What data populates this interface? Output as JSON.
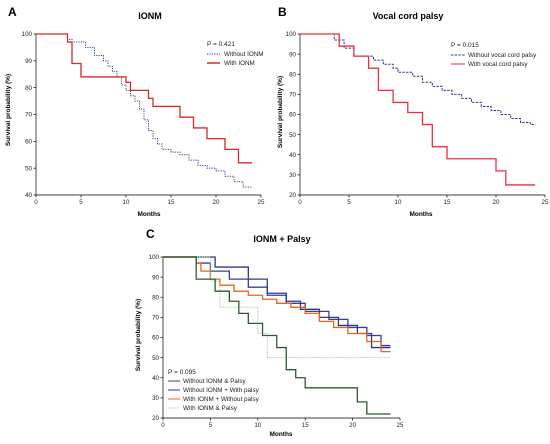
{
  "chart_data": [
    {
      "panel": "A",
      "title": "IONM",
      "type": "line",
      "xlabel": "Months",
      "ylabel": "Survival probability (%)",
      "xlim": [
        0,
        25
      ],
      "ylim": [
        40,
        100
      ],
      "xticks": [
        0,
        5,
        10,
        15,
        20,
        25
      ],
      "yticks": [
        40,
        50,
        60,
        70,
        80,
        90,
        100
      ],
      "p_value": "P = 0.421",
      "legend_position": "top-right",
      "series": [
        {
          "name": "Without IONM",
          "color": "#3a3f9a",
          "style": "dotted",
          "x": [
            0,
            3.5,
            3.5,
            4.0,
            4.0,
            5.5,
            5.5,
            6.5,
            6.5,
            7.5,
            7.5,
            8.0,
            8.0,
            8.5,
            8.5,
            9.0,
            9.0,
            9.5,
            9.5,
            10.0,
            10.0,
            10.5,
            10.5,
            11.0,
            11.0,
            11.5,
            11.5,
            12.0,
            12.0,
            12.5,
            12.5,
            13.0,
            13.0,
            13.5,
            13.5,
            14.0,
            14.0,
            15.0,
            15.0,
            16.0,
            16.0,
            17.0,
            17.0,
            18.0,
            18.0,
            19.0,
            19.0,
            20.0,
            20.0,
            21.0,
            21.0,
            22.0,
            22.0,
            23.0,
            23.0,
            24.0
          ],
          "y": [
            100,
            100,
            98,
            98,
            97,
            97,
            95,
            95,
            92,
            92,
            90,
            90,
            88,
            88,
            86,
            86,
            84,
            84,
            81,
            81,
            79,
            79,
            77,
            77,
            75,
            75,
            72,
            72,
            68,
            68,
            64,
            64,
            61,
            61,
            59,
            59,
            57,
            57,
            56,
            56,
            55,
            55,
            53,
            53,
            51,
            51,
            50,
            50,
            49,
            49,
            47,
            47,
            45,
            45,
            43,
            43
          ]
        },
        {
          "name": "With IONM",
          "color": "#d62828",
          "style": "solid",
          "x": [
            0,
            3.5,
            3.5,
            4.0,
            4.0,
            5.0,
            5.0,
            10.0,
            10.0,
            10.5,
            10.5,
            12.5,
            12.5,
            13.0,
            13.0,
            16.0,
            16.0,
            17.5,
            17.5,
            19.0,
            19.0,
            21.0,
            21.0,
            22.5,
            22.5,
            23.5,
            23.5,
            24.0
          ],
          "y": [
            100,
            100,
            97,
            97,
            89,
            89,
            84,
            84,
            82,
            82,
            79,
            79,
            76,
            76,
            73,
            73,
            69,
            69,
            65,
            65,
            61,
            61,
            57,
            57,
            52,
            52,
            52,
            52
          ]
        }
      ]
    },
    {
      "panel": "B",
      "title": "Vocal cord palsy",
      "type": "line",
      "xlabel": "Months",
      "ylabel": "Survival probability (%)",
      "xlim": [
        0,
        25
      ],
      "ylim": [
        20,
        100
      ],
      "xticks": [
        0,
        5,
        10,
        15,
        20,
        25
      ],
      "yticks": [
        20,
        30,
        40,
        50,
        60,
        70,
        80,
        90,
        100
      ],
      "p_value": "P = 0.015",
      "legend_position": "top-right",
      "series": [
        {
          "name": "Without vocal cord palsy",
          "color": "#2e3192",
          "style": "dashed",
          "x": [
            0,
            3.5,
            3.5,
            4.5,
            4.5,
            5.5,
            5.5,
            7.5,
            7.5,
            8.5,
            8.5,
            9.5,
            9.5,
            10.0,
            10.0,
            11.5,
            11.5,
            12.5,
            12.5,
            13.5,
            13.5,
            14.5,
            14.5,
            15.5,
            15.5,
            16.5,
            16.5,
            17.5,
            17.5,
            18.5,
            18.5,
            19.5,
            19.5,
            20.5,
            20.5,
            21.5,
            21.5,
            22.5,
            22.5,
            23.5,
            23.5,
            24.0
          ],
          "y": [
            100,
            100,
            97,
            97,
            93,
            93,
            89,
            89,
            87,
            87,
            85,
            85,
            83,
            83,
            81,
            81,
            79,
            79,
            76,
            76,
            74,
            74,
            72,
            72,
            70,
            70,
            68,
            68,
            66,
            66,
            64,
            64,
            62,
            62,
            60,
            60,
            58,
            58,
            56,
            56,
            55,
            55
          ]
        },
        {
          "name": "With vocal cord palsy",
          "color": "#e8313a",
          "style": "solid",
          "x": [
            0,
            4.0,
            4.0,
            5.5,
            5.5,
            7.0,
            7.0,
            8.0,
            8.0,
            9.5,
            9.5,
            11.0,
            11.0,
            12.5,
            12.5,
            13.5,
            13.5,
            15.0,
            15.0,
            20.0,
            20.0,
            21.0,
            21.0,
            24.0
          ],
          "y": [
            100,
            100,
            94,
            94,
            89,
            89,
            83,
            83,
            72,
            72,
            66,
            66,
            61,
            61,
            55,
            55,
            44,
            44,
            38,
            38,
            32,
            32,
            25,
            25
          ]
        }
      ]
    },
    {
      "panel": "C",
      "title": "IONM + Palsy",
      "type": "line",
      "xlabel": "Months",
      "ylabel": "Survival probability (%)",
      "xlim": [
        0,
        25
      ],
      "ylim": [
        20,
        100
      ],
      "xticks": [
        0,
        5,
        10,
        15,
        20,
        25
      ],
      "yticks": [
        20,
        30,
        40,
        50,
        60,
        70,
        80,
        90,
        100
      ],
      "p_value": "P = 0.095",
      "legend_position": "bottom-left",
      "series": [
        {
          "name": "Without IONM & Palsy",
          "color": "#3a3f9a",
          "style": "solid",
          "x": [
            0,
            3.5,
            3.5,
            5.0,
            5.0,
            7.0,
            7.0,
            9.0,
            9.0,
            11.0,
            11.0,
            13.0,
            13.0,
            15.0,
            15.0,
            17.5,
            17.5,
            19.5,
            19.5,
            21.5,
            21.5,
            23.0,
            23.0,
            24.0
          ],
          "y": [
            100,
            100,
            97,
            97,
            93,
            93,
            89,
            89,
            85,
            85,
            81,
            81,
            77,
            77,
            73,
            73,
            69,
            69,
            65,
            65,
            61,
            61,
            56,
            56
          ]
        },
        {
          "name": "Without IONM + With palsy",
          "color": "#2e3a87",
          "style": "solid",
          "x": [
            0,
            5.5,
            5.5,
            9.0,
            9.0,
            11.0,
            11.0,
            13.0,
            13.0,
            14.5,
            14.5,
            16.5,
            16.5,
            18.5,
            18.5,
            20.5,
            20.5,
            22.0,
            22.0,
            24.0
          ],
          "y": [
            100,
            100,
            95,
            95,
            89,
            89,
            82,
            82,
            78,
            78,
            74,
            74,
            70,
            70,
            66,
            66,
            62,
            62,
            55,
            55
          ]
        },
        {
          "name": "With IONM + Without palsy",
          "color": "#e8661a",
          "style": "solid",
          "x": [
            0,
            3.5,
            3.5,
            4.0,
            4.0,
            5.0,
            5.0,
            6.0,
            6.0,
            7.5,
            7.5,
            9.0,
            9.0,
            10.5,
            10.5,
            12.0,
            12.0,
            13.5,
            13.5,
            15.0,
            15.0,
            16.5,
            16.5,
            18.0,
            18.0,
            19.5,
            19.5,
            21.5,
            21.5,
            23.0,
            23.0,
            24.0
          ],
          "y": [
            100,
            100,
            97,
            97,
            93,
            93,
            89,
            89,
            86,
            86,
            83,
            83,
            81,
            81,
            79,
            79,
            77,
            77,
            75,
            75,
            72,
            72,
            68,
            68,
            65,
            65,
            62,
            62,
            58,
            58,
            53,
            53
          ]
        },
        {
          "name": "With IONM & Palsy",
          "color": "#a8c79a",
          "style": "dotted",
          "x": [
            0,
            5.0,
            5.0,
            6.0,
            6.0,
            10.0,
            10.0,
            11.0,
            11.0,
            24.0
          ],
          "y": [
            100,
            100,
            88,
            88,
            75,
            75,
            62,
            62,
            50,
            50
          ]
        },
        {
          "name": "",
          "color": "#2f5a2f",
          "style": "solid",
          "x": [
            0,
            3.5,
            3.5,
            5.5,
            5.5,
            7.0,
            7.0,
            8.0,
            8.0,
            9.0,
            9.0,
            10.5,
            10.5,
            12.0,
            12.0,
            13.0,
            13.0,
            14.0,
            14.0,
            15.0,
            15.0,
            20.5,
            20.5,
            21.5,
            21.5,
            24.0
          ],
          "y": [
            100,
            100,
            89,
            89,
            83,
            83,
            78,
            78,
            72,
            72,
            67,
            67,
            61,
            61,
            55,
            55,
            44,
            44,
            40,
            40,
            35,
            35,
            28,
            28,
            22,
            22
          ]
        }
      ]
    }
  ],
  "colors": {
    "axis": "#000000"
  }
}
